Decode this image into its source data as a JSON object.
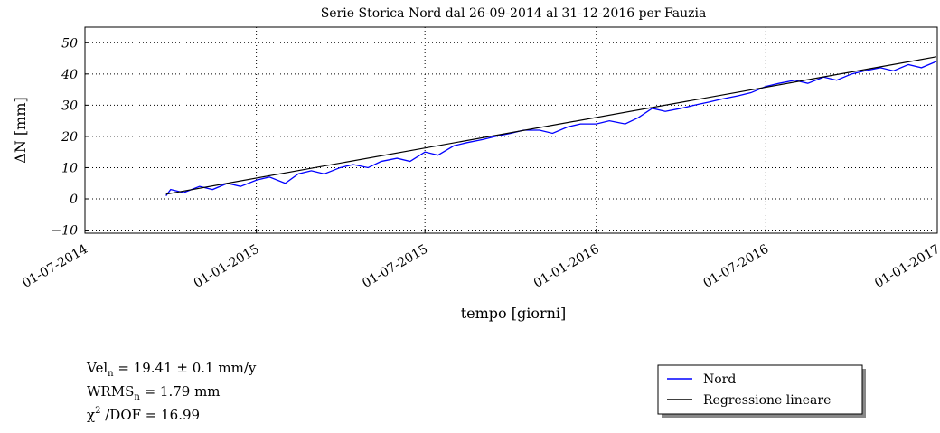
{
  "chart_data": {
    "type": "line",
    "title": "Serie Storica Nord dal 26-09-2014 al 31-12-2016 per Fauzia",
    "y_label": "ΔN  [mm]",
    "x_label": "tempo [giorni]",
    "xlim": [
      "01-07-2014",
      "01-01-2017"
    ],
    "xticks": [
      "01-07-2014",
      "01-01-2015",
      "01-07-2015",
      "01-01-2016",
      "01-07-2016",
      "01-01-2017"
    ],
    "ylim": [
      -11,
      55
    ],
    "yticks": [
      {
        "value": -10,
        "label": "−10"
      },
      0,
      10,
      20,
      30,
      40,
      50
    ],
    "grid": true,
    "legend": "lower right",
    "series": [
      {
        "name": "Nord",
        "color": "#0000ff",
        "x": [
          "26-09-2014",
          "01-10-2014",
          "15-10-2014",
          "01-11-2014",
          "15-11-2014",
          "01-12-2014",
          "15-12-2014",
          "01-01-2015",
          "15-01-2015",
          "01-02-2015",
          "15-02-2015",
          "01-03-2015",
          "15-03-2015",
          "01-04-2015",
          "15-04-2015",
          "01-05-2015",
          "15-05-2015",
          "01-06-2015",
          "15-06-2015",
          "01-07-2015",
          "15-07-2015",
          "01-08-2015",
          "15-08-2015",
          "01-09-2015",
          "15-09-2015",
          "01-10-2015",
          "15-10-2015",
          "01-11-2015",
          "15-11-2015",
          "01-12-2015",
          "15-12-2015",
          "01-01-2016",
          "15-01-2016",
          "01-02-2016",
          "15-02-2016",
          "01-03-2016",
          "15-03-2016",
          "01-04-2016",
          "15-04-2016",
          "01-05-2016",
          "15-05-2016",
          "01-06-2016",
          "15-06-2016",
          "01-07-2016",
          "15-07-2016",
          "01-08-2016",
          "15-08-2016",
          "01-09-2016",
          "15-09-2016",
          "01-10-2016",
          "15-10-2016",
          "01-11-2016",
          "15-11-2016",
          "01-12-2016",
          "15-12-2016",
          "31-12-2016"
        ],
        "values": [
          1,
          3,
          2,
          4,
          3,
          5,
          4,
          6,
          7,
          5,
          8,
          9,
          8,
          10,
          11,
          10,
          12,
          13,
          12,
          15,
          14,
          17,
          18,
          19,
          20,
          21,
          22,
          22,
          21,
          23,
          24,
          24,
          25,
          24,
          26,
          29,
          28,
          29,
          30,
          31,
          32,
          33,
          34,
          36,
          37,
          38,
          37,
          39,
          38,
          40,
          41,
          42,
          41,
          43,
          42,
          44
        ]
      },
      {
        "name": "Regressione lineare",
        "color": "#000000",
        "x": [
          "26-09-2014",
          "31-12-2016"
        ],
        "values": [
          1.5,
          45.5
        ]
      }
    ],
    "annotations": [
      {
        "label": "Vel",
        "sub": "n",
        "text": " =  19.41 ± 0.1  mm/y"
      },
      {
        "label": "WRMS",
        "sub": "n",
        "text": " =  1.79  mm"
      },
      {
        "label": "χ",
        "sup": "2",
        "text": " /DOF  =  16.99"
      }
    ]
  }
}
